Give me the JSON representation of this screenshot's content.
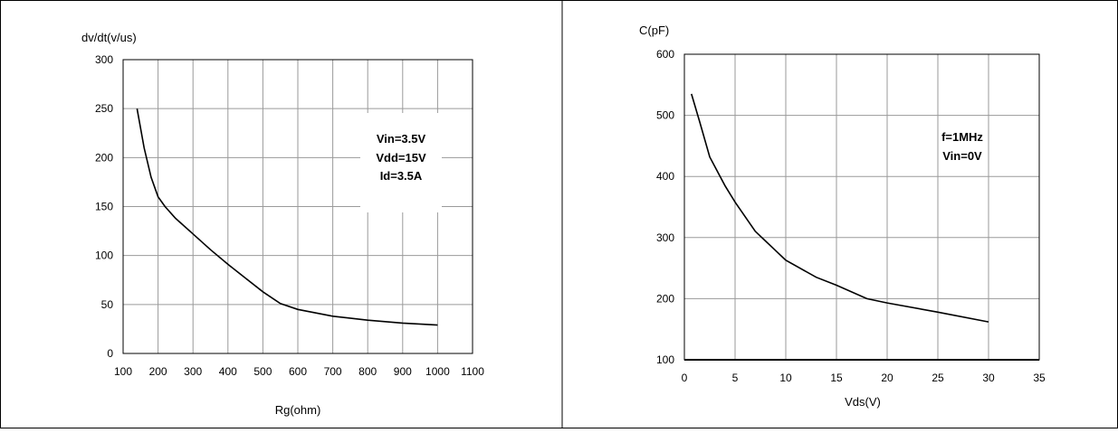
{
  "chart_data": [
    {
      "type": "line",
      "ylabel": "dv/dt(v/us)",
      "xlabel": "Rg(ohm)",
      "xlim": [
        100,
        1100
      ],
      "ylim": [
        0,
        300
      ],
      "x_ticks": [
        100,
        200,
        300,
        400,
        500,
        600,
        700,
        800,
        900,
        1000,
        1100
      ],
      "y_ticks": [
        0,
        50,
        100,
        150,
        200,
        250,
        300
      ],
      "grid": true,
      "annotation": [
        "Vin=3.5V",
        "Vdd=15V",
        "Id=3.5A"
      ],
      "series": [
        {
          "x": [
            140,
            160,
            180,
            200,
            220,
            250,
            300,
            350,
            400,
            450,
            500,
            550,
            600,
            700,
            800,
            900,
            1000
          ],
          "y": [
            250,
            210,
            180,
            160,
            150,
            138,
            122,
            106,
            91,
            77,
            63,
            51,
            45,
            38,
            34,
            31,
            29
          ]
        }
      ]
    },
    {
      "type": "line",
      "ylabel": "C(pF)",
      "xlabel": "Vds(V)",
      "xlim": [
        0,
        35
      ],
      "ylim": [
        100,
        600
      ],
      "x_ticks": [
        0,
        5,
        10,
        15,
        20,
        25,
        30,
        35
      ],
      "y_ticks": [
        100,
        200,
        300,
        400,
        500,
        600
      ],
      "grid": true,
      "annotation": [
        "f=1MHz",
        "Vin=0V"
      ],
      "series": [
        {
          "x": [
            0.7,
            1.5,
            2.5,
            4,
            5,
            7,
            10,
            13,
            15,
            18,
            20,
            25,
            30
          ],
          "y": [
            535,
            490,
            432,
            385,
            358,
            310,
            263,
            235,
            222,
            200,
            193,
            178,
            162
          ]
        }
      ]
    }
  ]
}
